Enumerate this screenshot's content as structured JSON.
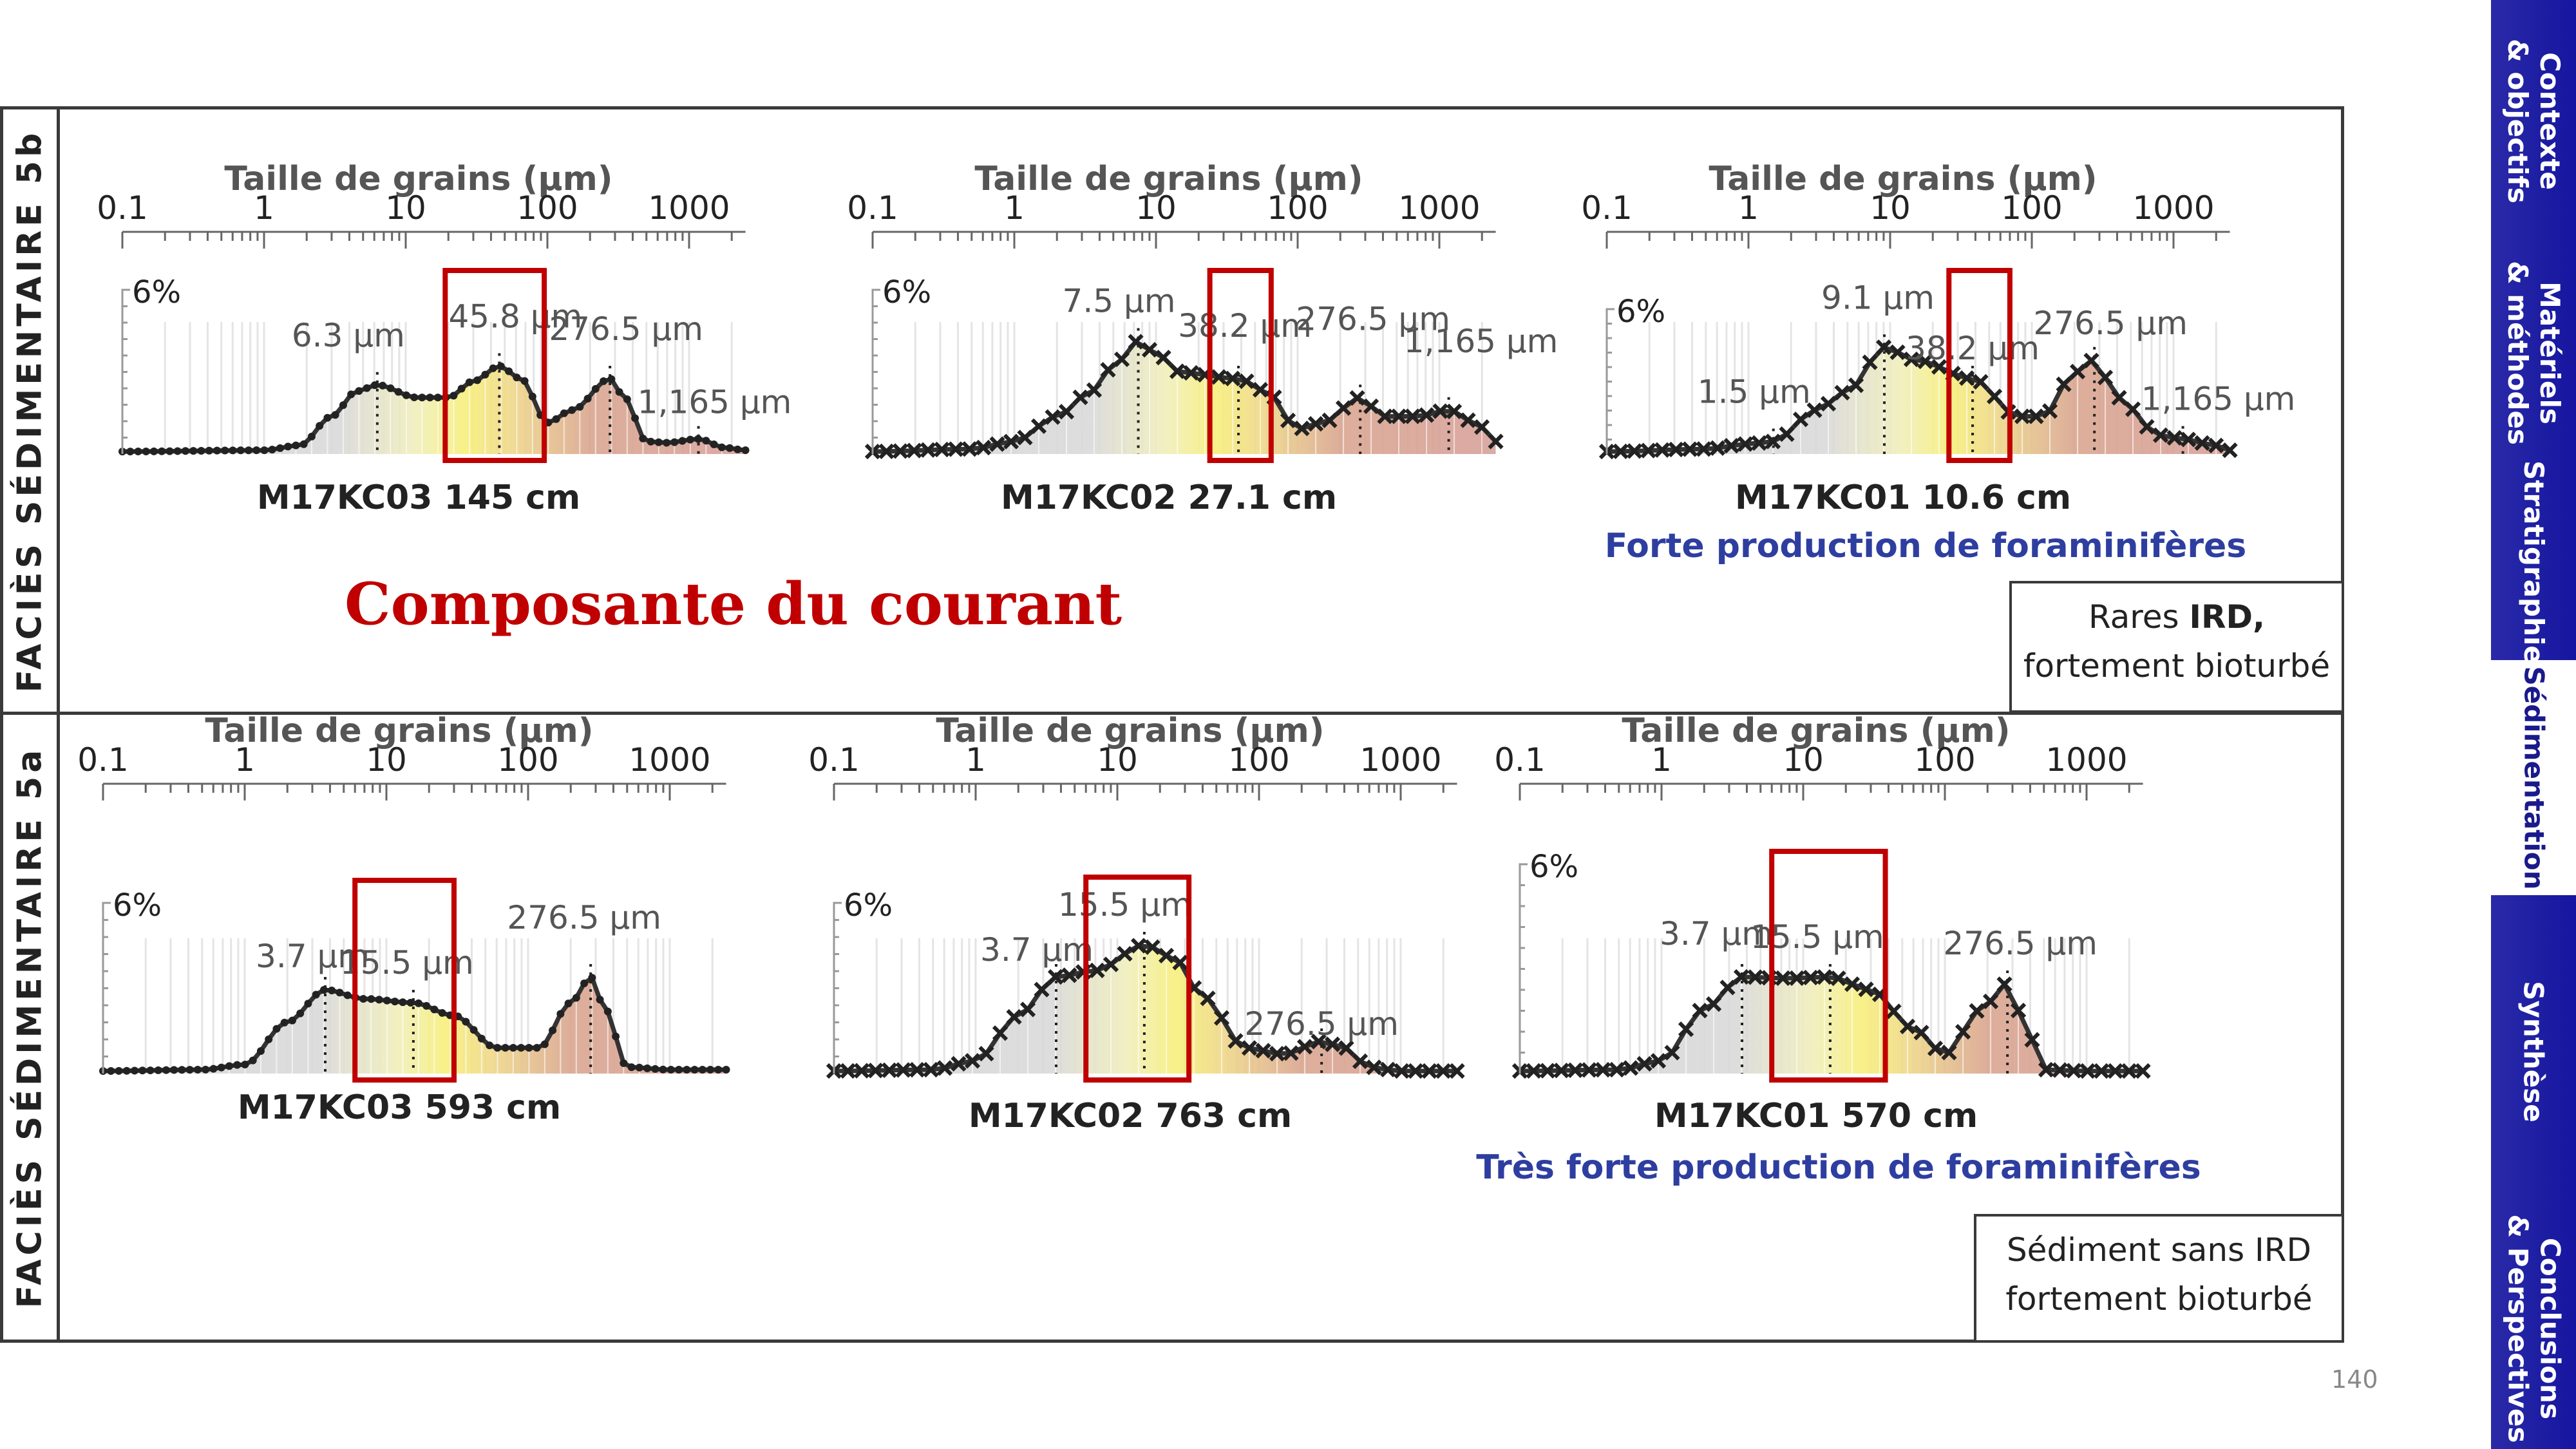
{
  "row_5b": {
    "label": "FACIÈS SÉDIMENTAIRE 5b",
    "heading": "Composante du courant",
    "description_pre": "Rares ",
    "description_bold": "IRD,",
    "description_post": "fortement bioturbé"
  },
  "row_5a": {
    "label": "FACIÈS SÉDIMENTAIRE 5a",
    "description_line1": "Sédiment sans IRD",
    "description_line2": "fortement bioturbé"
  },
  "page_number": "140",
  "nav": {
    "items": [
      {
        "label": "Contexte\n& objectifs",
        "active": false
      },
      {
        "label": "Matériels\n& méthodes",
        "active": false
      },
      {
        "label": "Stratigraphie",
        "active": false
      },
      {
        "label": "Sédimentation",
        "active": true
      },
      {
        "label": "Synthèse",
        "active": false
      },
      {
        "label": "Conclusions\n& Perspectives",
        "active": false
      }
    ],
    "colors": {
      "background": "#1c1ca4",
      "active_text": "#1a1a8c"
    }
  },
  "chart_data": [
    {
      "type": "area",
      "title": "M17KC03 145 cm",
      "xlabel": "Taille de grains (µm)",
      "xscale": "log",
      "xticks": [
        "0.1",
        "1",
        "10",
        "100",
        "1000"
      ],
      "ylabel_marker": "6%",
      "subtitle": "",
      "peaks": [
        {
          "x": 6.3,
          "y": 0.55,
          "label": "6.3 µm"
        },
        {
          "x": 45.8,
          "y": 0.7,
          "label": "45.8 µm"
        },
        {
          "x": 276.5,
          "y": 0.6,
          "label": "276.5 µm"
        },
        {
          "x": 1165,
          "y": 0.12,
          "label": "1,165 µm"
        }
      ],
      "highlight_x": [
        19,
        95
      ],
      "series": [
        {
          "values": [
            [
              0.1,
              0.02
            ],
            [
              1,
              0.03
            ],
            [
              1.8,
              0.07
            ],
            [
              3,
              0.3
            ],
            [
              4.5,
              0.5
            ],
            [
              6.3,
              0.55
            ],
            [
              12,
              0.45
            ],
            [
              20,
              0.45
            ],
            [
              30,
              0.58
            ],
            [
              45.8,
              0.7
            ],
            [
              65,
              0.6
            ],
            [
              100,
              0.25
            ],
            [
              150,
              0.35
            ],
            [
              276.5,
              0.6
            ],
            [
              350,
              0.45
            ],
            [
              500,
              0.1
            ],
            [
              700,
              0.09
            ],
            [
              1165,
              0.12
            ],
            [
              1800,
              0.05
            ],
            [
              2500,
              0.03
            ]
          ]
        }
      ]
    },
    {
      "type": "area",
      "title": "M17KC02 27.1 cm",
      "xlabel": "Taille de grains (µm)",
      "xscale": "log",
      "xticks": [
        "0.1",
        "1",
        "10",
        "100",
        "1000"
      ],
      "ylabel_marker": "6%",
      "subtitle": "",
      "peaks": [
        {
          "x": 7.5,
          "y": 0.9,
          "label": "7.5 µm"
        },
        {
          "x": 38.2,
          "y": 0.6,
          "label": "38.2 µm"
        },
        {
          "x": 276.5,
          "y": 0.45,
          "label": "276.5 µm"
        },
        {
          "x": 1165,
          "y": 0.35,
          "label": "1,165 µm"
        }
      ],
      "highlight_x": [
        24,
        65
      ],
      "series": [
        {
          "values": [
            [
              0.1,
              0.02
            ],
            [
              0.5,
              0.04
            ],
            [
              1,
              0.1
            ],
            [
              2,
              0.3
            ],
            [
              3.5,
              0.5
            ],
            [
              5,
              0.7
            ],
            [
              7.5,
              0.9
            ],
            [
              10,
              0.8
            ],
            [
              15,
              0.65
            ],
            [
              38.2,
              0.6
            ],
            [
              60,
              0.5
            ],
            [
              100,
              0.2
            ],
            [
              150,
              0.25
            ],
            [
              276.5,
              0.45
            ],
            [
              400,
              0.3
            ],
            [
              700,
              0.3
            ],
            [
              1165,
              0.35
            ],
            [
              1800,
              0.25
            ],
            [
              2500,
              0.1
            ]
          ]
        }
      ]
    },
    {
      "type": "area",
      "title": "M17KC01 10.6 cm",
      "xlabel": "Taille de grains (µm)",
      "xscale": "log",
      "xticks": [
        "0.1",
        "1",
        "10",
        "100",
        "1000"
      ],
      "ylabel_marker": "6%",
      "subtitle": "Forte production de foraminifères",
      "peaks": [
        {
          "x": 1.5,
          "y": 0.1,
          "label": "1.5 µm"
        },
        {
          "x": 9.1,
          "y": 0.85,
          "label": "9.1 µm"
        },
        {
          "x": 38.2,
          "y": 0.6,
          "label": "38.2 µm"
        },
        {
          "x": 276.5,
          "y": 0.75,
          "label": "276.5 µm"
        },
        {
          "x": 1165,
          "y": 0.12,
          "label": "1,165 µm"
        }
      ],
      "highlight_x": [
        26,
        70
      ],
      "series": [
        {
          "values": [
            [
              0.1,
              0.02
            ],
            [
              0.5,
              0.04
            ],
            [
              1,
              0.08
            ],
            [
              1.5,
              0.1
            ],
            [
              3,
              0.35
            ],
            [
              5,
              0.5
            ],
            [
              9.1,
              0.85
            ],
            [
              15,
              0.75
            ],
            [
              38.2,
              0.6
            ],
            [
              80,
              0.3
            ],
            [
              120,
              0.3
            ],
            [
              200,
              0.65
            ],
            [
              276.5,
              0.75
            ],
            [
              400,
              0.45
            ],
            [
              800,
              0.15
            ],
            [
              1165,
              0.12
            ],
            [
              1800,
              0.08
            ],
            [
              2500,
              0.03
            ]
          ]
        }
      ]
    },
    {
      "type": "area",
      "title": "M17KC03 593 cm",
      "xlabel": "Taille de grains (µm)",
      "xscale": "log",
      "xticks": [
        "0.1",
        "1",
        "10",
        "100",
        "1000"
      ],
      "ylabel_marker": "6%",
      "subtitle": "",
      "peaks": [
        {
          "x": 3.7,
          "y": 0.65,
          "label": "3.7 µm"
        },
        {
          "x": 15.5,
          "y": 0.55,
          "label": "15.5 µm"
        },
        {
          "x": 276.5,
          "y": 0.75,
          "label": "276.5 µm"
        }
      ],
      "highlight_x": [
        6,
        30
      ],
      "series": [
        {
          "values": [
            [
              0.1,
              0.02
            ],
            [
              0.5,
              0.03
            ],
            [
              1,
              0.07
            ],
            [
              2,
              0.4
            ],
            [
              3.7,
              0.65
            ],
            [
              7,
              0.58
            ],
            [
              15.5,
              0.55
            ],
            [
              30,
              0.45
            ],
            [
              60,
              0.2
            ],
            [
              120,
              0.2
            ],
            [
              200,
              0.55
            ],
            [
              276.5,
              0.75
            ],
            [
              350,
              0.5
            ],
            [
              500,
              0.05
            ],
            [
              1000,
              0.03
            ],
            [
              2000,
              0.03
            ]
          ]
        }
      ]
    },
    {
      "type": "area",
      "title": "M17KC02 763 cm",
      "xlabel": "Taille de grains (µm)",
      "xscale": "log",
      "xticks": [
        "0.1",
        "1",
        "10",
        "100",
        "1000"
      ],
      "ylabel_marker": "6%",
      "subtitle": "",
      "peaks": [
        {
          "x": 3.7,
          "y": 0.75,
          "label": "3.7 µm"
        },
        {
          "x": 15.5,
          "y": 1.0,
          "label": "15.5 µm"
        },
        {
          "x": 276.5,
          "y": 0.25,
          "label": "276.5 µm"
        }
      ],
      "highlight_x": [
        6,
        32
      ],
      "series": [
        {
          "values": [
            [
              0.1,
              0.02
            ],
            [
              0.5,
              0.03
            ],
            [
              1,
              0.1
            ],
            [
              2,
              0.45
            ],
            [
              3.7,
              0.75
            ],
            [
              7,
              0.8
            ],
            [
              15.5,
              1.0
            ],
            [
              25,
              0.9
            ],
            [
              40,
              0.6
            ],
            [
              80,
              0.2
            ],
            [
              150,
              0.15
            ],
            [
              276.5,
              0.25
            ],
            [
              400,
              0.2
            ],
            [
              600,
              0.05
            ],
            [
              1000,
              0.02
            ],
            [
              2000,
              0.02
            ]
          ]
        }
      ]
    },
    {
      "type": "area",
      "title": "M17KC01 570 cm",
      "xlabel": "Taille de grains (µm)",
      "xscale": "log",
      "xticks": [
        "0.1",
        "1",
        "10",
        "100",
        "1000"
      ],
      "ylabel_marker": "6%",
      "subtitle": "Très forte production de foraminifères",
      "peaks": [
        {
          "x": 3.7,
          "y": 0.75,
          "label": "3.7 µm"
        },
        {
          "x": 15.5,
          "y": 0.75,
          "label": "15.5 µm"
        },
        {
          "x": 276.5,
          "y": 0.7,
          "label": "276.5 µm"
        }
      ],
      "highlight_x": [
        6,
        38
      ],
      "series": [
        {
          "values": [
            [
              0.1,
              0.02
            ],
            [
              0.5,
              0.03
            ],
            [
              1,
              0.1
            ],
            [
              2,
              0.5
            ],
            [
              3.7,
              0.75
            ],
            [
              8,
              0.74
            ],
            [
              15.5,
              0.75
            ],
            [
              30,
              0.65
            ],
            [
              60,
              0.35
            ],
            [
              100,
              0.15
            ],
            [
              180,
              0.5
            ],
            [
              276.5,
              0.7
            ],
            [
              350,
              0.45
            ],
            [
              500,
              0.03
            ],
            [
              1000,
              0.02
            ],
            [
              2000,
              0.02
            ]
          ]
        }
      ]
    }
  ]
}
